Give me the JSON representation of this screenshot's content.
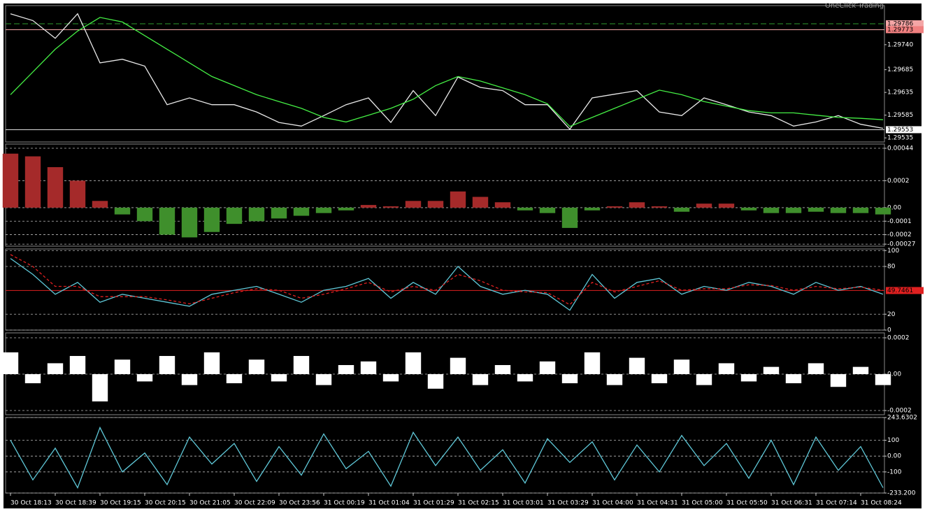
{
  "chart_data": [
    {
      "type": "line",
      "annotation": "OneClick Trading",
      "ylim": [
        1.29526,
        1.29826
      ],
      "yticks": [
        {
          "value": 1.2974,
          "label": "1.29740"
        },
        1.29685,
        1.29635,
        1.29585,
        1.29535
      ],
      "grid": false,
      "levels": [
        {
          "value": 1.29786,
          "color": "#2e9b2e",
          "label_color": "#f4a6a6",
          "style": "dashed"
        },
        {
          "value": 1.29773,
          "color": "#f4a6a6",
          "label_color": "#f08080",
          "style": "solid"
        },
        {
          "value": 1.29553,
          "color": "#dddddd",
          "label_color": "#ffffff",
          "style": "solid"
        }
      ],
      "series": [
        {
          "color": "#e8e8e8",
          "style": "solid",
          "values": [
            1.29808,
            1.29793,
            1.29754,
            1.29808,
            1.297,
            1.29708,
            1.29693,
            1.29608,
            1.29623,
            1.29608,
            1.29608,
            1.29592,
            1.29569,
            1.29561,
            1.29584,
            1.29608,
            1.29623,
            1.29569,
            1.29639,
            1.29584,
            1.29669,
            1.29646,
            1.29639,
            1.29608,
            1.29608,
            1.29554,
            1.29623,
            1.29631,
            1.29639,
            1.29592,
            1.29584,
            1.29623,
            1.29608,
            1.29592,
            1.29584,
            1.29561,
            1.2957,
            1.29584,
            1.29565,
            1.29556
          ]
        },
        {
          "color": "#44ee44",
          "style": "solid",
          "values": [
            1.2963,
            1.2968,
            1.2973,
            1.2977,
            1.298,
            1.2979,
            1.2976,
            1.2973,
            1.297,
            1.2967,
            1.2965,
            1.2963,
            1.29615,
            1.296,
            1.2958,
            1.2957,
            1.29585,
            1.296,
            1.2962,
            1.2965,
            1.2967,
            1.2966,
            1.29645,
            1.2963,
            1.2961,
            1.2956,
            1.2958,
            1.296,
            1.2962,
            1.2964,
            1.2963,
            1.29615,
            1.29605,
            1.29595,
            1.2959,
            1.2959,
            1.29585,
            1.2958,
            1.29578,
            1.29575
          ]
        }
      ]
    },
    {
      "type": "bar",
      "ylim": [
        -0.000285,
        0.000471
      ],
      "yticks": [
        0.00044,
        0.0002,
        {
          "value": 0,
          "label": "0.00"
        },
        -0.0001,
        -0.0002,
        -0.00027
      ],
      "grid": true,
      "color_up": "#a52a2a",
      "color_down": "#3f8f2c",
      "values": [
        0.0004,
        0.00038,
        0.0003,
        0.0002,
        5e-05,
        -5e-05,
        -0.0001,
        -0.0002,
        -0.00022,
        -0.00018,
        -0.00012,
        -0.0001,
        -8e-05,
        -6e-05,
        -4e-05,
        -2e-05,
        2e-05,
        1e-05,
        5e-05,
        5e-05,
        0.00012,
        8e-05,
        4e-05,
        -2e-05,
        -4e-05,
        -0.00015,
        -2e-05,
        1e-05,
        4e-05,
        1e-05,
        -3e-05,
        3e-05,
        3e-05,
        -2e-05,
        -4e-05,
        -4e-05,
        -3e-05,
        -4e-05,
        -4e-05,
        -5e-05
      ]
    },
    {
      "type": "line",
      "ylim": [
        0,
        102
      ],
      "yticks": [
        100,
        80,
        20,
        0
      ],
      "grid": true,
      "levels": [
        {
          "value": 49.7461,
          "color": "#e02020",
          "label_color": "#e02020",
          "style": "solid"
        }
      ],
      "series": [
        {
          "color": "#5fc8d8",
          "style": "solid",
          "values": [
            90,
            70,
            45,
            60,
            35,
            45,
            40,
            35,
            30,
            45,
            50,
            55,
            45,
            35,
            50,
            55,
            65,
            40,
            60,
            45,
            80,
            55,
            45,
            50,
            45,
            25,
            70,
            40,
            60,
            65,
            45,
            55,
            50,
            60,
            55,
            45,
            60,
            50,
            55,
            45
          ]
        },
        {
          "color": "#e02020",
          "style": "dashed",
          "values": [
            95,
            80,
            55,
            55,
            42,
            42,
            42,
            38,
            33,
            40,
            47,
            52,
            50,
            40,
            45,
            52,
            60,
            48,
            55,
            50,
            70,
            62,
            50,
            48,
            47,
            32,
            60,
            48,
            55,
            62,
            50,
            52,
            52,
            57,
            56,
            50,
            55,
            52,
            54,
            50
          ]
        }
      ]
    },
    {
      "type": "bar",
      "ylim": [
        -0.000223,
        0.000227
      ],
      "yticks": [
        0.0002,
        {
          "value": 0,
          "label": "0.00"
        },
        -0.0002
      ],
      "grid": true,
      "color_up": "#ffffff",
      "color_down": "#ffffff",
      "values": [
        0.00012,
        -5e-05,
        6e-05,
        0.0001,
        -0.00015,
        8e-05,
        -4e-05,
        0.0001,
        -6e-05,
        0.00012,
        -5e-05,
        8e-05,
        -4e-05,
        0.0001,
        -6e-05,
        5e-05,
        7e-05,
        -4e-05,
        0.00012,
        -8e-05,
        9e-05,
        -6e-05,
        5e-05,
        -4e-05,
        7e-05,
        -5e-05,
        0.00012,
        -6e-05,
        9e-05,
        -5e-05,
        8e-05,
        -6e-05,
        6e-05,
        -4e-05,
        4e-05,
        -5e-05,
        6e-05,
        -7e-05,
        4e-05,
        -6e-05
      ]
    },
    {
      "type": "line",
      "ylim": [
        -233.2,
        243.6302
      ],
      "yticks": [
        243.6302,
        100,
        {
          "value": 0,
          "label": "0.00"
        },
        -100,
        {
          "value": -233.2,
          "label": "-233.200"
        }
      ],
      "grid": true,
      "categories": [
        "30 Oct 18:13",
        null,
        "30 Oct 18:39",
        null,
        "30 Oct 19:15",
        null,
        "30 Oct 20:15",
        null,
        "30 Oct 21:05",
        null,
        "30 Oct 22:09",
        null,
        "30 Oct 23:56",
        null,
        "31 Oct 00:19",
        null,
        "31 Oct 01:04",
        null,
        "31 Oct 01:29",
        null,
        "31 Oct 02:15",
        null,
        "31 Oct 03:01",
        null,
        "31 Oct 03:29",
        null,
        "31 Oct 04:00",
        null,
        "31 Oct 04:31",
        null,
        "31 Oct 05:00",
        null,
        "31 Oct 05:50",
        null,
        "31 Oct 06:31",
        null,
        "31 Oct 07:14",
        null,
        "31 Oct 08:24",
        null
      ],
      "series": [
        {
          "color": "#5fc8d8",
          "style": "solid",
          "values": [
            100,
            -150,
            50,
            -200,
            180,
            -100,
            20,
            -180,
            120,
            -50,
            80,
            -160,
            60,
            -120,
            140,
            -80,
            30,
            -190,
            150,
            -60,
            120,
            -90,
            40,
            -170,
            110,
            -40,
            90,
            -150,
            70,
            -100,
            130,
            -60,
            80,
            -140,
            100,
            -180,
            120,
            -90,
            60,
            -200
          ]
        }
      ]
    }
  ]
}
